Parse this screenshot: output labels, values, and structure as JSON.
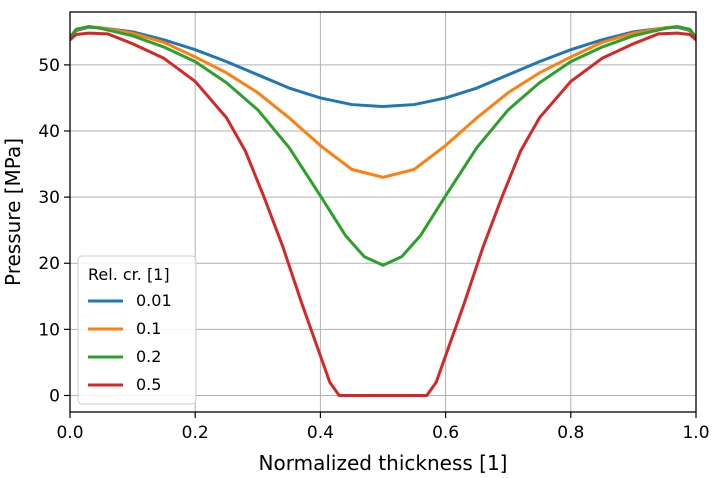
{
  "chart_data": {
    "type": "line",
    "title": "",
    "xlabel": "Normalized thickness [1]",
    "ylabel": "Pressure [MPa]",
    "xlim": [
      0.0,
      1.0
    ],
    "ylim": [
      -2.5,
      58
    ],
    "xticks": [
      0.0,
      0.2,
      0.4,
      0.6,
      0.8,
      1.0
    ],
    "xtick_labels": [
      "0.0",
      "0.2",
      "0.4",
      "0.6",
      "0.8",
      "1.0"
    ],
    "yticks": [
      0,
      10,
      20,
      30,
      40,
      50
    ],
    "ytick_labels": [
      "0",
      "10",
      "20",
      "30",
      "40",
      "50"
    ],
    "grid": true,
    "legend": {
      "title": "Rel. cr. [1]",
      "location": "lower-left"
    },
    "series": [
      {
        "name": "0.01",
        "color": "#1f77b4",
        "x": [
          0.0,
          0.01,
          0.03,
          0.05,
          0.1,
          0.15,
          0.2,
          0.25,
          0.3,
          0.35,
          0.4,
          0.45,
          0.5,
          0.55,
          0.6,
          0.65,
          0.7,
          0.75,
          0.8,
          0.85,
          0.9,
          0.95,
          0.97,
          0.99,
          1.0
        ],
        "y": [
          53.8,
          55.2,
          55.7,
          55.6,
          55.0,
          53.8,
          52.3,
          50.5,
          48.5,
          46.5,
          45.0,
          44.0,
          43.7,
          44.0,
          45.0,
          46.5,
          48.5,
          50.5,
          52.3,
          53.8,
          55.0,
          55.6,
          55.7,
          55.2,
          53.8
        ]
      },
      {
        "name": "0.1",
        "color": "#ff7f0e",
        "x": [
          0.0,
          0.01,
          0.03,
          0.05,
          0.1,
          0.15,
          0.2,
          0.25,
          0.3,
          0.35,
          0.4,
          0.45,
          0.5,
          0.55,
          0.6,
          0.65,
          0.7,
          0.75,
          0.8,
          0.85,
          0.9,
          0.95,
          0.97,
          0.99,
          1.0
        ],
        "y": [
          54.0,
          55.3,
          55.8,
          55.6,
          54.8,
          53.4,
          51.2,
          48.8,
          45.8,
          42.0,
          37.8,
          34.2,
          33.0,
          34.2,
          37.8,
          42.0,
          45.8,
          48.8,
          51.2,
          53.4,
          54.8,
          55.6,
          55.8,
          55.3,
          54.0
        ]
      },
      {
        "name": "0.2",
        "color": "#2ca02c",
        "x": [
          0.0,
          0.01,
          0.03,
          0.05,
          0.1,
          0.15,
          0.2,
          0.25,
          0.3,
          0.35,
          0.4,
          0.44,
          0.47,
          0.5,
          0.53,
          0.56,
          0.6,
          0.65,
          0.7,
          0.75,
          0.8,
          0.85,
          0.9,
          0.95,
          0.97,
          0.99,
          1.0
        ],
        "y": [
          54.2,
          55.4,
          55.8,
          55.5,
          54.4,
          52.7,
          50.5,
          47.3,
          43.2,
          37.5,
          30.2,
          24.2,
          21.0,
          19.7,
          21.0,
          24.2,
          30.2,
          37.5,
          43.2,
          47.3,
          50.5,
          52.7,
          54.4,
          55.5,
          55.8,
          55.4,
          54.2
        ]
      },
      {
        "name": "0.5",
        "color": "#d62728",
        "x": [
          0.0,
          0.01,
          0.03,
          0.06,
          0.1,
          0.15,
          0.2,
          0.25,
          0.28,
          0.31,
          0.34,
          0.37,
          0.4,
          0.415,
          0.43,
          0.57,
          0.585,
          0.6,
          0.63,
          0.66,
          0.69,
          0.72,
          0.75,
          0.8,
          0.85,
          0.9,
          0.94,
          0.97,
          0.99,
          1.0
        ],
        "y": [
          53.8,
          54.6,
          54.8,
          54.7,
          53.2,
          51.0,
          47.5,
          42.0,
          37.0,
          30.0,
          22.5,
          14.0,
          6.0,
          2.0,
          0.0,
          0.0,
          2.0,
          6.0,
          14.0,
          22.5,
          30.0,
          37.0,
          42.0,
          47.5,
          51.0,
          53.2,
          54.7,
          54.8,
          54.6,
          53.8
        ]
      }
    ]
  }
}
